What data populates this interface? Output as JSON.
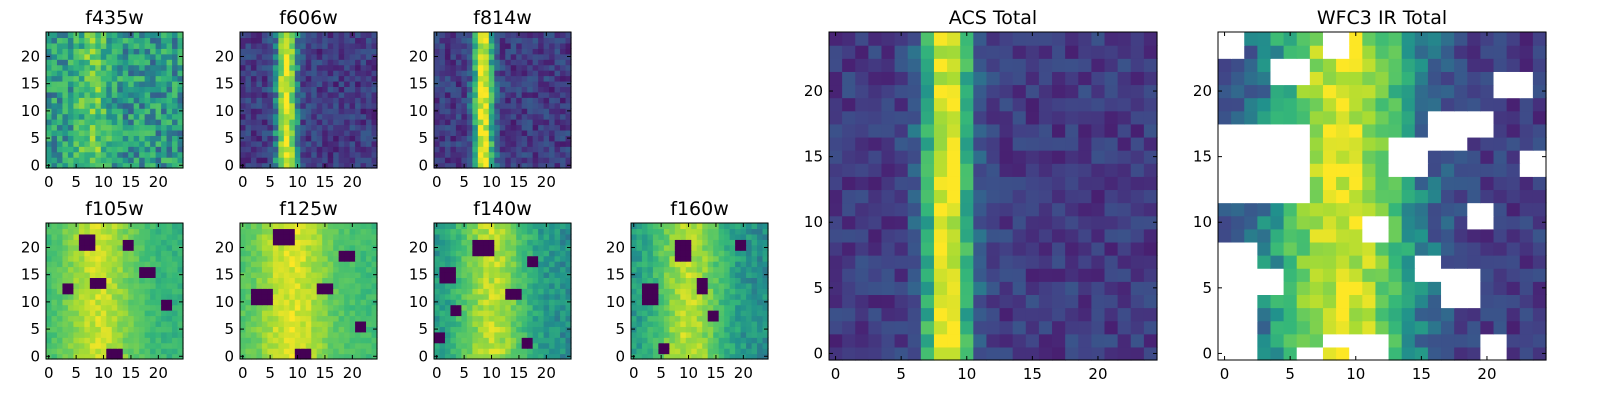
{
  "colormap": "viridis",
  "missing_color": "#ffffff",
  "chart_data": [
    {
      "type": "heatmap",
      "title": "f435w",
      "grid_size": 25,
      "xticks": [
        "0",
        "5",
        "10",
        "15",
        "20"
      ],
      "yticks": [
        "0",
        "5",
        "10",
        "15",
        "20"
      ],
      "column_profile": {
        "peak_col": 8,
        "width": 2.0,
        "peak": 0.75,
        "base": 0.55,
        "noise": 0.35
      },
      "holes": []
    },
    {
      "type": "heatmap",
      "title": "f606w",
      "grid_size": 25,
      "xticks": [
        "0",
        "5",
        "10",
        "15",
        "20"
      ],
      "yticks": [
        "0",
        "5",
        "10",
        "15",
        "20"
      ],
      "column_profile": {
        "peak_col": 8,
        "width": 1.3,
        "peak": 1.0,
        "base": 0.22,
        "noise": 0.28
      },
      "holes": []
    },
    {
      "type": "heatmap",
      "title": "f814w",
      "grid_size": 25,
      "xticks": [
        "0",
        "5",
        "10",
        "15",
        "20"
      ],
      "yticks": [
        "0",
        "5",
        "10",
        "15",
        "20"
      ],
      "column_profile": {
        "peak_col": 8.5,
        "width": 1.3,
        "peak": 1.0,
        "base": 0.22,
        "noise": 0.28
      },
      "holes": []
    },
    {
      "type": "heatmap",
      "title": "f105w",
      "grid_size": 25,
      "xticks": [
        "0",
        "5",
        "10",
        "15",
        "20"
      ],
      "yticks": [
        "0",
        "5",
        "10",
        "15",
        "20"
      ],
      "column_profile": {
        "peak_col": 9,
        "width": 5.0,
        "peak": 0.92,
        "base": 0.62,
        "noise": 0.12
      },
      "holes": [
        [
          6,
          20,
          3,
          3
        ],
        [
          3,
          12,
          2,
          2
        ],
        [
          8,
          13,
          3,
          2
        ],
        [
          14,
          20,
          2,
          2
        ],
        [
          17,
          15,
          3,
          2
        ],
        [
          11,
          0,
          3,
          2
        ],
        [
          21,
          9,
          2,
          2
        ]
      ]
    },
    {
      "type": "heatmap",
      "title": "f125w",
      "grid_size": 25,
      "xticks": [
        "0",
        "5",
        "10",
        "15",
        "20"
      ],
      "yticks": [
        "0",
        "5",
        "10",
        "15",
        "20"
      ],
      "column_profile": {
        "peak_col": 9,
        "width": 5.0,
        "peak": 0.95,
        "base": 0.66,
        "noise": 0.12
      },
      "holes": [
        [
          6,
          21,
          4,
          3
        ],
        [
          2,
          10,
          4,
          3
        ],
        [
          14,
          12,
          3,
          2
        ],
        [
          18,
          18,
          3,
          2
        ],
        [
          10,
          0,
          3,
          2
        ],
        [
          21,
          5,
          2,
          2
        ]
      ]
    },
    {
      "type": "heatmap",
      "title": "f140w",
      "grid_size": 25,
      "xticks": [
        "0",
        "5",
        "10",
        "15",
        "20"
      ],
      "yticks": [
        "0",
        "5",
        "10",
        "15",
        "20"
      ],
      "column_profile": {
        "peak_col": 10,
        "width": 4.5,
        "peak": 0.9,
        "base": 0.5,
        "noise": 0.15
      },
      "holes": [
        [
          7,
          19,
          4,
          3
        ],
        [
          1,
          14,
          3,
          3
        ],
        [
          3,
          8,
          2,
          2
        ],
        [
          13,
          11,
          3,
          2
        ],
        [
          17,
          17,
          2,
          2
        ],
        [
          0,
          3,
          2,
          2
        ],
        [
          16,
          2,
          2,
          2
        ]
      ]
    },
    {
      "type": "heatmap",
      "title": "f160w",
      "grid_size": 25,
      "xticks": [
        "0",
        "5",
        "10",
        "15",
        "20"
      ],
      "yticks": [
        "0",
        "5",
        "10",
        "15",
        "20"
      ],
      "column_profile": {
        "peak_col": 10,
        "width": 4.5,
        "peak": 0.9,
        "base": 0.5,
        "noise": 0.15
      },
      "holes": [
        [
          8,
          18,
          3,
          4
        ],
        [
          2,
          10,
          3,
          4
        ],
        [
          12,
          12,
          2,
          3
        ],
        [
          14,
          7,
          2,
          2
        ],
        [
          5,
          1,
          2,
          2
        ],
        [
          19,
          20,
          2,
          2
        ]
      ]
    },
    {
      "type": "heatmap",
      "title": "ACS Total",
      "grid_size": 25,
      "xticks": [
        "0",
        "5",
        "10",
        "15",
        "20"
      ],
      "yticks": [
        "0",
        "5",
        "10",
        "15",
        "20"
      ],
      "column_profile": {
        "peak_col": 8.5,
        "width": 1.3,
        "peak": 1.0,
        "base": 0.22,
        "noise": 0.22
      },
      "holes": []
    },
    {
      "type": "heatmap",
      "title": "WFC3 IR Total",
      "grid_size": 25,
      "xticks": [
        "0",
        "5",
        "10",
        "15",
        "20"
      ],
      "yticks": [
        "0",
        "5",
        "10",
        "15",
        "20"
      ],
      "column_profile": {
        "peak_col": 9,
        "width": 4.0,
        "peak": 0.95,
        "base": 0.22,
        "noise": 0.22
      },
      "holes": [
        [
          0,
          12,
          7,
          6
        ],
        [
          0,
          0,
          3,
          9
        ],
        [
          0,
          23,
          2,
          2
        ],
        [
          4,
          21,
          3,
          2
        ],
        [
          8,
          23,
          2,
          2
        ],
        [
          11,
          9,
          2,
          2
        ],
        [
          13,
          14,
          3,
          3
        ],
        [
          15,
          6,
          2,
          2
        ],
        [
          16,
          16,
          3,
          3
        ],
        [
          19,
          17,
          2,
          2
        ],
        [
          21,
          20,
          3,
          2
        ],
        [
          19,
          10,
          2,
          2
        ],
        [
          23,
          14,
          2,
          2
        ],
        [
          17,
          4,
          3,
          3
        ],
        [
          20,
          0,
          2,
          2
        ],
        [
          10,
          0,
          3,
          2
        ],
        [
          8,
          1,
          2,
          1
        ],
        [
          6,
          0,
          2,
          1
        ],
        [
          3,
          5,
          2,
          2
        ]
      ]
    }
  ]
}
